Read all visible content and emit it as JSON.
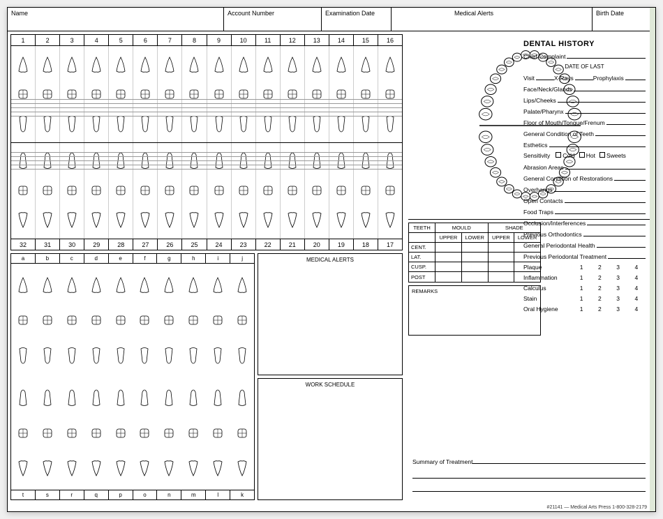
{
  "header": {
    "name": "Name",
    "account": "Account Number",
    "exam": "Examination Date",
    "alerts": "Medical Alerts",
    "birth": "Birth Date"
  },
  "header_widths": [
    310,
    140,
    100,
    200,
    100
  ],
  "adult_top": [
    "1",
    "2",
    "3",
    "4",
    "5",
    "6",
    "7",
    "8",
    "9",
    "10",
    "11",
    "12",
    "13",
    "14",
    "15",
    "16"
  ],
  "adult_bottom": [
    "32",
    "31",
    "30",
    "29",
    "28",
    "27",
    "26",
    "25",
    "24",
    "23",
    "22",
    "21",
    "20",
    "19",
    "18",
    "17"
  ],
  "child_top": [
    "a",
    "b",
    "c",
    "d",
    "e",
    "f",
    "g",
    "h",
    "i",
    "j"
  ],
  "child_bottom": [
    "t",
    "s",
    "r",
    "q",
    "p",
    "o",
    "n",
    "m",
    "l",
    "k"
  ],
  "boxes": {
    "medical_alerts": "MEDICAL ALERTS",
    "work_schedule": "WORK SCHEDULE"
  },
  "mould": {
    "hdr_teeth": "TEETH",
    "hdr_mould": "MOULD",
    "hdr_shade": "SHADE",
    "upper": "UPPER",
    "lower": "LOWER",
    "rows": [
      "CENT.",
      "LAT.",
      "CUSP.",
      "POST"
    ]
  },
  "remarks_label": "REMARKS",
  "history": {
    "title": "DENTAL HISTORY",
    "chief": "Chief Complaint",
    "date_of_last": "DATE OF LAST",
    "visit": "Visit",
    "xrays": "X-Rays",
    "proph": "Prophylaxis",
    "items": [
      "Face/Neck/Glands",
      "Lips/Cheeks",
      "Palate/Pharynx",
      "Floor of Mouth/Tongue/Frenum",
      "General Condition of Teeth",
      "Esthetics"
    ],
    "sensitivity": "Sensitivity",
    "cold": "Cold",
    "hot": "Hot",
    "sweets": "Sweets",
    "items2": [
      "Abrasion Areas",
      "General Condition of Restorations",
      "Overhangs",
      "Open Contacts",
      "Food Traps",
      "Occlusion/Interferences",
      "Previous Orthodontics",
      "General Periodontal Health",
      "Previous Periodontal Treatment"
    ],
    "scales": [
      "Plaque",
      "Inflammation",
      "Calculus",
      "Stain",
      "Oral Hygiene"
    ],
    "scale_vals": [
      "1",
      "2",
      "3",
      "4"
    ]
  },
  "summary_label": "Summary of Treatment",
  "footer": "#21141 — Medical Arts Press    1-800-328-2179",
  "colors": {
    "line": "#000",
    "grid": "#999"
  }
}
